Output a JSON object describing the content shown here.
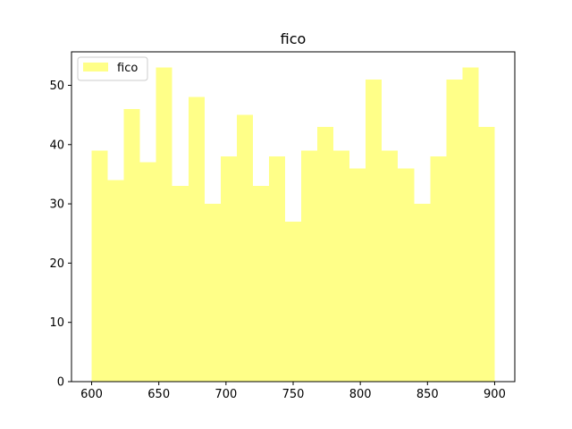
{
  "chart_data": {
    "type": "bar",
    "title": "fico",
    "xlabel": "",
    "ylabel": "",
    "xlim": [
      585,
      915
    ],
    "ylim": [
      0,
      55.65
    ],
    "xticks": [
      600,
      650,
      700,
      750,
      800,
      850,
      900
    ],
    "yticks": [
      0,
      10,
      20,
      30,
      40,
      50
    ],
    "grid": false,
    "legend_position": "top-left",
    "bar_color": "#ffff88",
    "series": [
      {
        "name": "fico",
        "bin_edges": [
          600,
          612,
          624,
          636,
          648,
          660,
          672,
          684,
          696,
          708,
          720,
          732,
          744,
          756,
          768,
          780,
          792,
          804,
          816,
          828,
          840,
          852,
          864,
          876,
          888,
          900
        ],
        "values": [
          39,
          34,
          46,
          37,
          53,
          33,
          48,
          30,
          38,
          45,
          33,
          38,
          27,
          39,
          43,
          39,
          36,
          51,
          39,
          36,
          30,
          38,
          51,
          53,
          43
        ]
      }
    ]
  }
}
